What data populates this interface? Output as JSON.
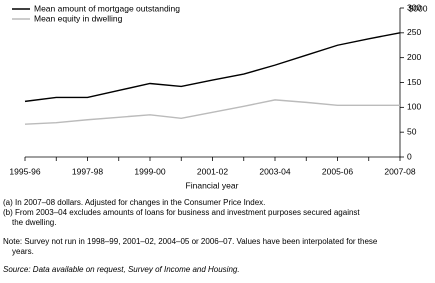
{
  "chart_data": {
    "type": "line",
    "y_label": "$000",
    "x_label": "Financial year",
    "categories": [
      "1995-96",
      null,
      "1997-98",
      null,
      "1999-00",
      null,
      "2001-02",
      null,
      "2003-04",
      null,
      "2005-06",
      null,
      "2007-08"
    ],
    "series": [
      {
        "name": "Mean amount of mortgage outstanding",
        "color": "#000000",
        "values": [
          112,
          120,
          120,
          134,
          148,
          142,
          155,
          167,
          185,
          205,
          225,
          238,
          250
        ]
      },
      {
        "name": "Mean equity in dwelling",
        "color": "#bbbbbb",
        "values": [
          66,
          69,
          75,
          80,
          85,
          78,
          90,
          102,
          115,
          110,
          104,
          104,
          104
        ]
      }
    ],
    "ylim": [
      0,
      300
    ],
    "yticks": [
      0,
      50,
      100,
      150,
      200,
      250,
      300
    ],
    "legend": "top-left",
    "notes": [
      "(a) In 2007–08 dollars. Adjusted for changes in the Consumer Price Index.",
      "(b) From 2003–04 excludes amounts of loans for business and investment purposes secured against",
      "the dwelling.",
      "Note: Survey not run in 1998–99, 2001–02, 2004–05 or 2006–07. Values have been interpolated for these",
      "years."
    ],
    "source": "Source: Data available on request, Survey of Income and Housing."
  }
}
